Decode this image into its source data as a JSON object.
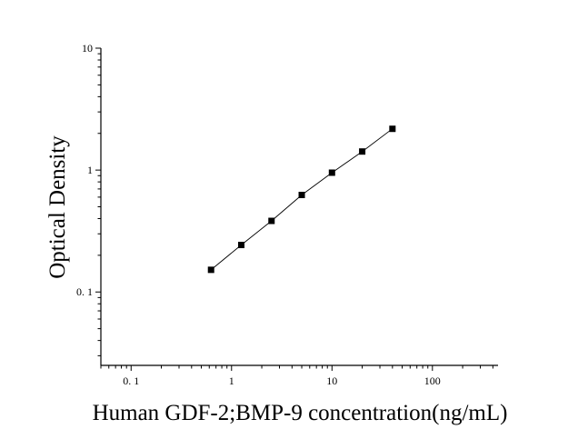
{
  "chart_data": {
    "type": "scatter",
    "title": "",
    "xlabel": "Human GDF-2;BMP-9 concentration(ng/mL)",
    "ylabel": "Optical Density",
    "x_scale": "log",
    "y_scale": "log",
    "xlim": [
      0.05,
      450
    ],
    "ylim": [
      0.025,
      10
    ],
    "x_ticks": [
      {
        "value": 0.1,
        "label": "0. 1"
      },
      {
        "value": 1,
        "label": "1"
      },
      {
        "value": 10,
        "label": "10"
      },
      {
        "value": 100,
        "label": "100"
      }
    ],
    "y_ticks": [
      {
        "value": 0.1,
        "label": "0. 1"
      },
      {
        "value": 1,
        "label": "1"
      },
      {
        "value": 10,
        "label": "10"
      }
    ],
    "grid": false,
    "legend": "none",
    "marker": "square",
    "series": [
      {
        "x": [
          0.625,
          1.25,
          2.5,
          5,
          10,
          20,
          40
        ],
        "y": [
          0.152,
          0.243,
          0.383,
          0.625,
          0.952,
          1.42,
          2.18
        ],
        "fit_line": true
      }
    ],
    "colors": {
      "marker": "#000000",
      "line": "#000000",
      "axis": "#000000"
    }
  }
}
